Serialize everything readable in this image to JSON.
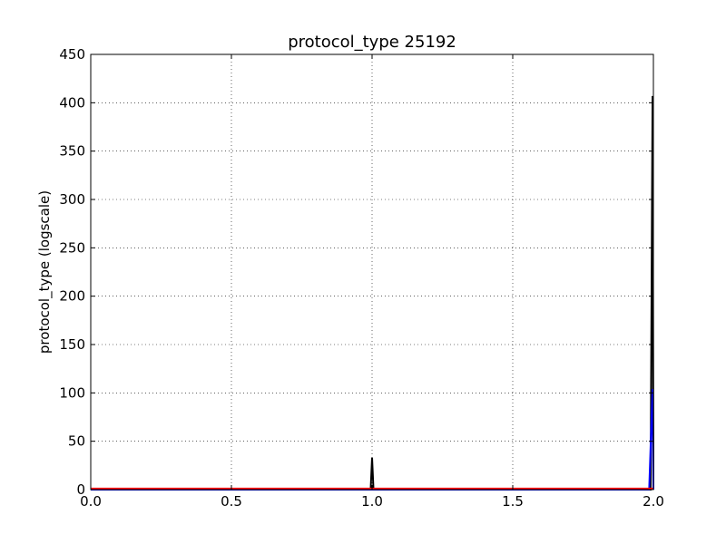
{
  "chart_data": {
    "type": "line",
    "title": "protocol_type 25192",
    "xlabel": "",
    "ylabel": "protocol_type (logscale)",
    "xlim": [
      0.0,
      2.0
    ],
    "ylim": [
      0,
      450
    ],
    "xticks": [
      "0.0",
      "0.5",
      "1.0",
      "1.5",
      "2.0"
    ],
    "yticks": [
      "0",
      "50",
      "100",
      "150",
      "200",
      "250",
      "300",
      "350",
      "400",
      "450"
    ],
    "grid": true,
    "series": [
      {
        "color": "#000000",
        "x": [
          0.0,
          0.995,
          1.0,
          1.005,
          1.99,
          1.997,
          2.0
        ],
        "y": [
          0,
          0,
          33,
          0,
          0,
          407,
          0
        ]
      },
      {
        "color": "#0000ff",
        "x": [
          0.0,
          1.985,
          1.997,
          2.0
        ],
        "y": [
          0,
          0,
          104,
          0
        ]
      },
      {
        "color": "#ff0000",
        "x": [
          0.0,
          2.0
        ],
        "y": [
          1,
          1
        ]
      }
    ]
  }
}
